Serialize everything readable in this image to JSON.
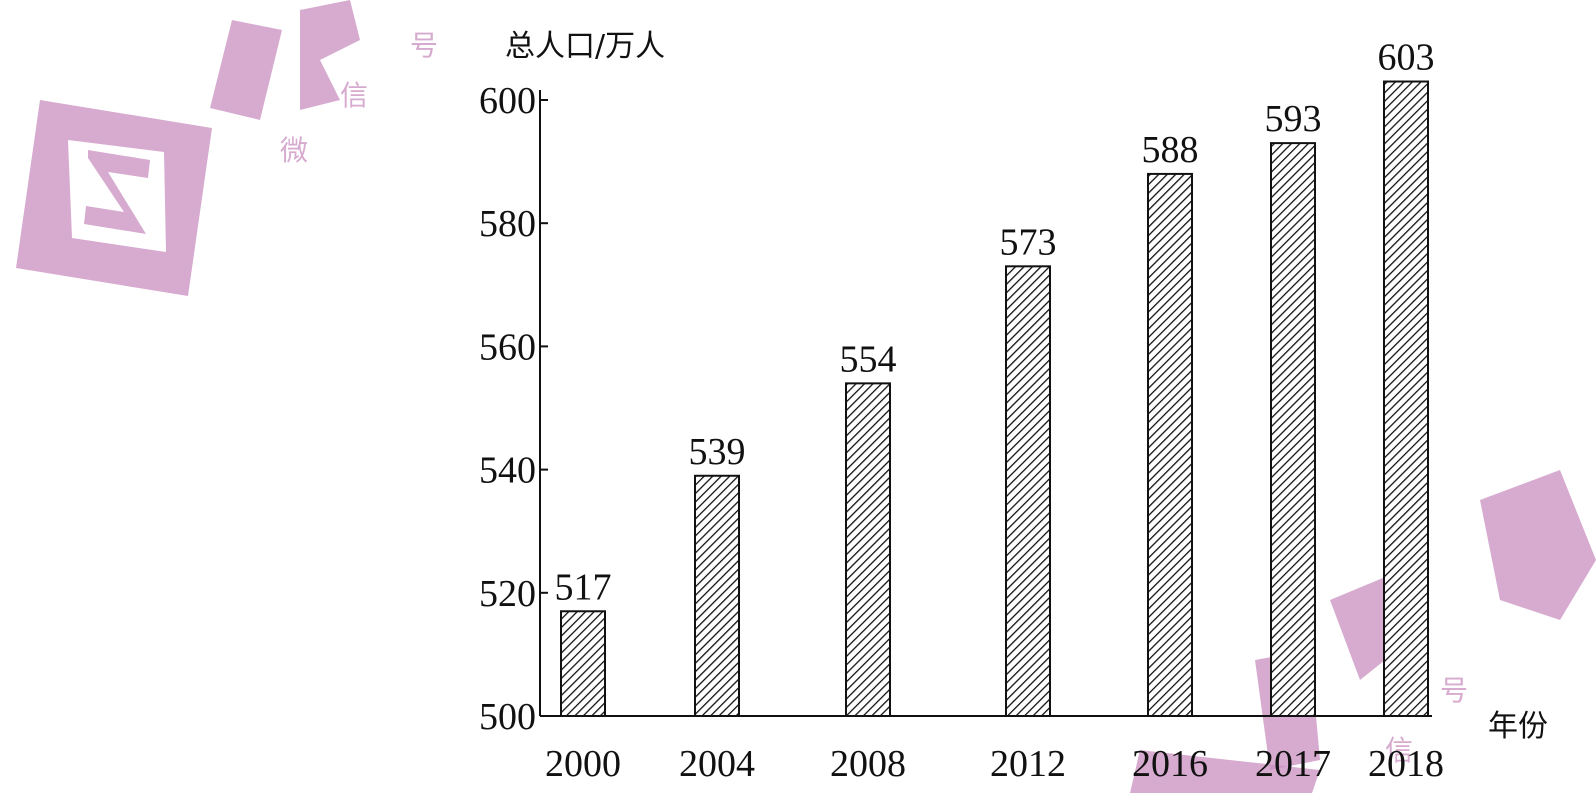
{
  "chart_data": {
    "type": "bar",
    "ylabel": "总人口/万人",
    "xlabel": "年份",
    "categories": [
      "2000",
      "2004",
      "2008",
      "2012",
      "2016",
      "2017",
      "2018"
    ],
    "values": [
      517,
      539,
      554,
      573,
      588,
      593,
      603
    ],
    "data_labels": [
      "517",
      "539",
      "554",
      "573",
      "588",
      "593",
      "603"
    ],
    "ylim": [
      500,
      600
    ],
    "yticks": [
      500,
      520,
      540,
      560,
      580,
      600
    ],
    "bar_fill": "diagonal-hatch",
    "grid": false,
    "legend": "none"
  },
  "watermark": {
    "color": "#c98fc0",
    "glyphs": [
      "微",
      "信",
      "号"
    ]
  }
}
